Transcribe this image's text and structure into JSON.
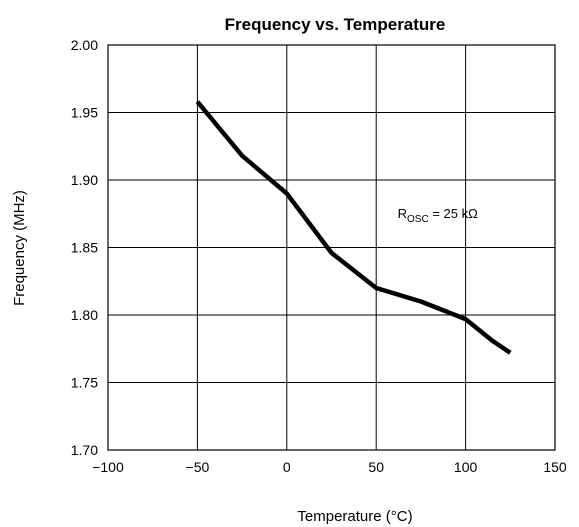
{
  "chart_data": {
    "type": "line",
    "title": "Frequency vs. Temperature",
    "xlabel": "Temperature (°C)",
    "ylabel": "Frequency (MHz)",
    "xlim": [
      -100,
      150
    ],
    "ylim": [
      1.7,
      2.0
    ],
    "grid": true,
    "x_ticks": [
      "−100",
      "−50",
      "0",
      "50",
      "100",
      "150"
    ],
    "x_tick_values": [
      -100,
      -50,
      0,
      50,
      100,
      150
    ],
    "y_ticks": [
      "1.70",
      "1.75",
      "1.80",
      "1.85",
      "1.90",
      "1.95",
      "2.00"
    ],
    "y_tick_values": [
      1.7,
      1.75,
      1.8,
      1.85,
      1.9,
      1.95,
      2.0
    ],
    "series": [
      {
        "x": [
          -50,
          -25,
          0,
          25,
          50,
          75,
          100,
          115,
          125
        ],
        "y": [
          1.958,
          1.918,
          1.89,
          1.846,
          1.82,
          1.81,
          1.797,
          1.781,
          1.772
        ]
      }
    ],
    "annotation": {
      "main": "R",
      "subscript": "OSC",
      "rest": " = 25 kΩ",
      "x": 62,
      "y": 1.872
    },
    "line_color": "#000000"
  }
}
